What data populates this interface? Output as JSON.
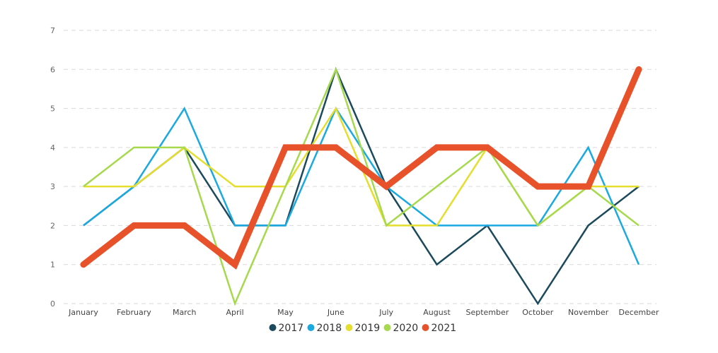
{
  "chart_data": {
    "type": "line",
    "categories": [
      "January",
      "February",
      "March",
      "April",
      "May",
      "June",
      "July",
      "August",
      "September",
      "October",
      "November",
      "December"
    ],
    "ylim": [
      0,
      7
    ],
    "yticks": [
      0,
      1,
      2,
      3,
      4,
      5,
      6,
      7
    ],
    "grid": true,
    "legend_position": "bottom",
    "series": [
      {
        "name": "2017",
        "color": "#1b4a5c",
        "values": [
          2,
          3,
          4,
          2,
          2,
          6,
          3,
          1,
          2,
          0,
          2,
          3
        ]
      },
      {
        "name": "2018",
        "color": "#1aa9e0",
        "values": [
          2,
          3,
          5,
          2,
          2,
          5,
          3,
          2,
          2,
          2,
          4,
          1
        ]
      },
      {
        "name": "2019",
        "color": "#e5de2c",
        "values": [
          3,
          3,
          4,
          3,
          3,
          5,
          2,
          2,
          4,
          2,
          3,
          3
        ]
      },
      {
        "name": "2020",
        "color": "#a6d94c",
        "values": [
          3,
          4,
          4,
          0,
          3,
          6,
          2,
          3,
          4,
          2,
          3,
          2
        ]
      },
      {
        "name": "2021",
        "color": "#e8522b",
        "values": [
          1,
          2,
          2,
          1,
          4,
          4,
          3,
          4,
          4,
          3,
          3,
          6
        ]
      }
    ]
  }
}
